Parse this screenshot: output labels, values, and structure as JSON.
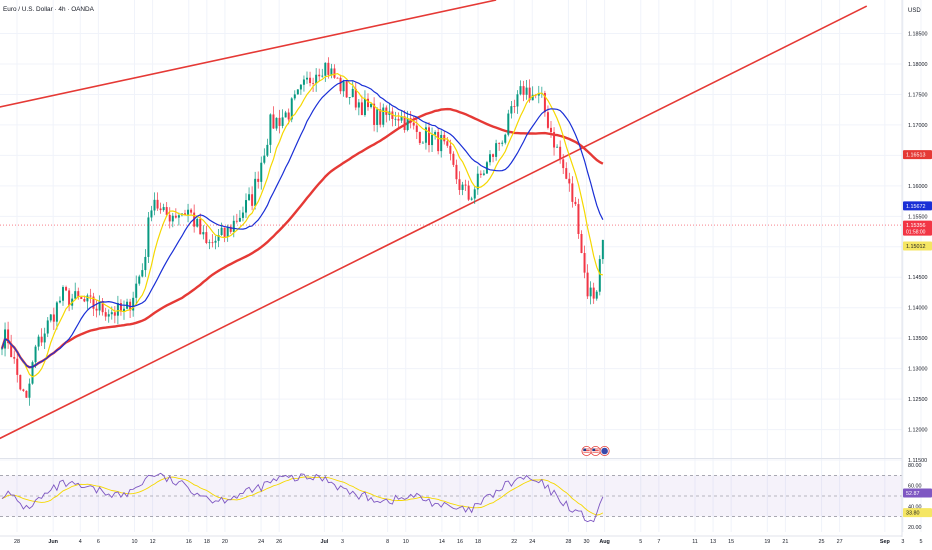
{
  "header": {
    "symbol_title": "Euro / U.S. Dollar · 4h · OANDA",
    "currency_label": "USD"
  },
  "chart_data": [
    {
      "type": "candlestick",
      "title": "Euro / U.S. Dollar · 4h · OANDA",
      "ylabel": "USD",
      "ylim": [
        1.1155,
        1.1905
      ],
      "y_ticks": [
        "1.18500",
        "1.18000",
        "1.17500",
        "1.17000",
        "1.16500",
        "1.16000",
        "1.15500",
        "1.15000",
        "1.14500",
        "1.14000",
        "1.13500",
        "1.13000",
        "1.12500",
        "1.12000",
        "1.11500"
      ],
      "x_ticks": [
        "28",
        "Jun",
        "4",
        "6",
        "10",
        "12",
        "16",
        "18",
        "20",
        "24",
        "26",
        "Jul",
        "3",
        "8",
        "10",
        "14",
        "16",
        "18",
        "22",
        "24",
        "28",
        "30",
        "Aug",
        "5",
        "7",
        "11",
        "13",
        "15",
        "19",
        "21",
        "25",
        "27",
        "Sep",
        "3",
        "5"
      ],
      "grid": true,
      "price_badges": [
        {
          "value": "1.16513",
          "color": "#e53935",
          "text_color": "#ffffff"
        },
        {
          "value": "1.15672",
          "color": "#1a2fd6",
          "text_color": "#ffffff"
        },
        {
          "value": "1.15356",
          "value2": "01:58:00",
          "color": "#f23645",
          "text_color": "#ffffff"
        },
        {
          "value": "1.15012",
          "color": "#f5e663",
          "text_color": "#222222"
        }
      ],
      "up_color": "#089981",
      "down_color": "#f23645",
      "ohlc_anchors": [
        {
          "date": "2025-05-27",
          "close": 1.135
        },
        {
          "date": "2025-05-28",
          "close": 1.129
        },
        {
          "date": "2025-05-29",
          "close": 1.124
        },
        {
          "date": "2025-05-30",
          "close": 1.133
        },
        {
          "date": "2025-06-02",
          "close": 1.142
        },
        {
          "date": "2025-06-04",
          "close": 1.141
        },
        {
          "date": "2025-06-06",
          "close": 1.14
        },
        {
          "date": "2025-06-09",
          "close": 1.139
        },
        {
          "date": "2025-06-11",
          "close": 1.147
        },
        {
          "date": "2025-06-12",
          "close": 1.159
        },
        {
          "date": "2025-06-13",
          "close": 1.155
        },
        {
          "date": "2025-06-16",
          "close": 1.156
        },
        {
          "date": "2025-06-18",
          "close": 1.15
        },
        {
          "date": "2025-06-20",
          "close": 1.152
        },
        {
          "date": "2025-06-23",
          "close": 1.158
        },
        {
          "date": "2025-06-25",
          "close": 1.17
        },
        {
          "date": "2025-06-27",
          "close": 1.172
        },
        {
          "date": "2025-06-30",
          "close": 1.179
        },
        {
          "date": "2025-07-01",
          "close": 1.18
        },
        {
          "date": "2025-07-03",
          "close": 1.176
        },
        {
          "date": "2025-07-07",
          "close": 1.171
        },
        {
          "date": "2025-07-09",
          "close": 1.172
        },
        {
          "date": "2025-07-11",
          "close": 1.169
        },
        {
          "date": "2025-07-14",
          "close": 1.167
        },
        {
          "date": "2025-07-16",
          "close": 1.16
        },
        {
          "date": "2025-07-17",
          "close": 1.158
        },
        {
          "date": "2025-07-21",
          "close": 1.169
        },
        {
          "date": "2025-07-23",
          "close": 1.176
        },
        {
          "date": "2025-07-25",
          "close": 1.174
        },
        {
          "date": "2025-07-28",
          "close": 1.16
        },
        {
          "date": "2025-07-29",
          "close": 1.155
        },
        {
          "date": "2025-07-30",
          "close": 1.143
        },
        {
          "date": "2025-07-31",
          "close": 1.142
        },
        {
          "date": "2025-08-01",
          "close": 1.1536
        }
      ],
      "sma_20": {
        "color": "#f5d800",
        "last": 1.15012
      },
      "sma_50": {
        "color": "#1a2fd6",
        "last": 1.15672
      },
      "sma_200": {
        "color": "#e53935",
        "last": 1.16513
      },
      "trendlines": [
        {
          "name": "upper-channel",
          "color": "#e53935",
          "from": {
            "date": "2025-05-20",
            "price": 1.171
          },
          "to": {
            "date": "2025-07-20",
            "price": 1.1905
          }
        },
        {
          "name": "lower-channel",
          "color": "#e53935",
          "from": {
            "date": "2025-05-24",
            "price": 1.117
          },
          "to": {
            "date": "2025-08-30",
            "price": 1.1895
          }
        }
      ]
    },
    {
      "type": "line",
      "title": "RSI",
      "ylim": [
        15,
        85
      ],
      "y_ticks": [
        "80.00",
        "60.00",
        "40.00",
        "20.00"
      ],
      "overbought": 70,
      "oversold": 30,
      "rsi_color": "#7e57c2",
      "signal_color": "#f5d800",
      "rsi_anchors": [
        {
          "date": "2025-05-27",
          "value": 52
        },
        {
          "date": "2025-05-29",
          "value": 38
        },
        {
          "date": "2025-06-02",
          "value": 62
        },
        {
          "date": "2025-06-06",
          "value": 55
        },
        {
          "date": "2025-06-09",
          "value": 50
        },
        {
          "date": "2025-06-12",
          "value": 72
        },
        {
          "date": "2025-06-16",
          "value": 58
        },
        {
          "date": "2025-06-19",
          "value": 45
        },
        {
          "date": "2025-06-23",
          "value": 55
        },
        {
          "date": "2025-06-26",
          "value": 67
        },
        {
          "date": "2025-07-01",
          "value": 68
        },
        {
          "date": "2025-07-04",
          "value": 52
        },
        {
          "date": "2025-07-08",
          "value": 45
        },
        {
          "date": "2025-07-11",
          "value": 50
        },
        {
          "date": "2025-07-15",
          "value": 38
        },
        {
          "date": "2025-07-17",
          "value": 35
        },
        {
          "date": "2025-07-21",
          "value": 60
        },
        {
          "date": "2025-07-23",
          "value": 68
        },
        {
          "date": "2025-07-25",
          "value": 62
        },
        {
          "date": "2025-07-28",
          "value": 40
        },
        {
          "date": "2025-07-30",
          "value": 28
        },
        {
          "date": "2025-07-31",
          "value": 26
        },
        {
          "date": "2025-08-01",
          "value": 52.87
        }
      ],
      "badges": [
        {
          "value": "52.87",
          "color": "#7e57c2",
          "text_color": "#ffffff"
        },
        {
          "value": "33.80",
          "color": "#f5e663",
          "text_color": "#222222"
        }
      ]
    }
  ],
  "event_icons": [
    {
      "name": "us-flag-icon",
      "date": "2025-07-30"
    },
    {
      "name": "us-flag-icon",
      "date": "2025-07-31"
    },
    {
      "name": "earth-icon",
      "date": "2025-08-01"
    }
  ],
  "colors": {
    "grid": "#f0f3fa",
    "axis_text": "#131722",
    "bg": "#ffffff"
  }
}
